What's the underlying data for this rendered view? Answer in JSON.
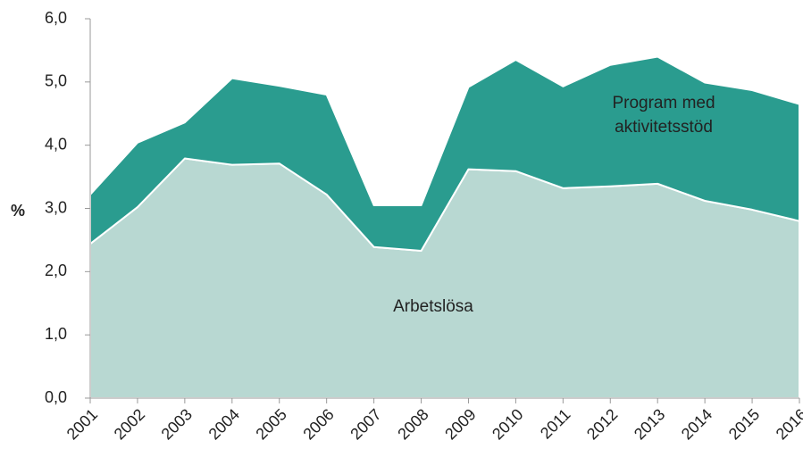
{
  "chart_data": {
    "type": "stacked-area",
    "categories": [
      "2001",
      "2002",
      "2003",
      "2004",
      "2005",
      "2006",
      "2007",
      "2008",
      "2009",
      "2010",
      "2011",
      "2012",
      "2013",
      "2014",
      "2015",
      "2016"
    ],
    "series": [
      {
        "name": "Arbetslösa",
        "color": "#b8d8d2",
        "values": [
          2.44,
          3.02,
          3.79,
          3.69,
          3.71,
          3.22,
          2.39,
          2.33,
          3.62,
          3.59,
          3.32,
          3.35,
          3.39,
          3.12,
          2.98,
          2.8
        ]
      },
      {
        "name": "Program med aktivitetsstöd",
        "color": "#2a9c8f",
        "values": [
          0.78,
          1.02,
          0.57,
          1.37,
          1.23,
          1.58,
          0.66,
          0.72,
          1.3,
          1.76,
          1.61,
          1.92,
          2.01,
          1.87,
          1.89,
          1.85
        ]
      }
    ],
    "ylabel": "%",
    "ylim": [
      0,
      6
    ],
    "yticks": [
      {
        "value": 0,
        "label": "0,0"
      },
      {
        "value": 1,
        "label": "1,0"
      },
      {
        "value": 2,
        "label": "2,0"
      },
      {
        "value": 3,
        "label": "3,0"
      },
      {
        "value": 4,
        "label": "4,0"
      },
      {
        "value": 5,
        "label": "5,0"
      },
      {
        "value": 6,
        "label": "6,0"
      }
    ]
  }
}
